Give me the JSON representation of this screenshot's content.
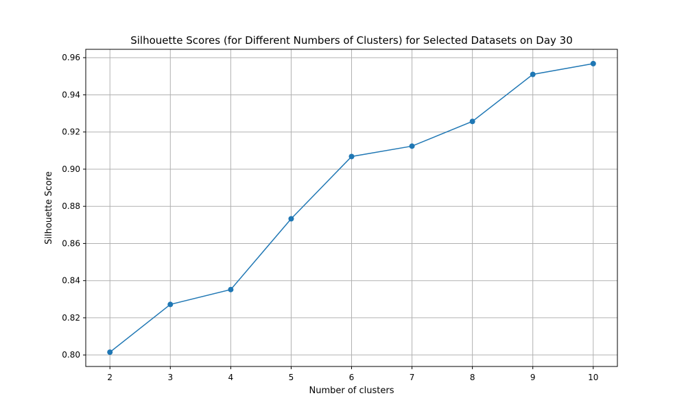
{
  "chart_data": {
    "type": "line",
    "title": "Silhouette Scores (for Different Numbers of Clusters) for Selected Datasets on Day 30",
    "xlabel": "Number of clusters",
    "ylabel": "Silhouette Score",
    "x": [
      2,
      3,
      4,
      5,
      6,
      7,
      8,
      9,
      10
    ],
    "series": [
      {
        "values": [
          0.8015,
          0.8272,
          0.8352,
          0.8733,
          0.9068,
          0.9124,
          0.9257,
          0.951,
          0.9568
        ],
        "color": "#1f77b4",
        "marker": "circle"
      }
    ],
    "xlim": [
      1.6,
      10.4
    ],
    "ylim": [
      0.7938,
      0.9645
    ],
    "xticks": [
      "2",
      "3",
      "4",
      "5",
      "6",
      "7",
      "8",
      "9",
      "10"
    ],
    "yticks": [
      "0.80",
      "0.82",
      "0.84",
      "0.86",
      "0.88",
      "0.90",
      "0.92",
      "0.94",
      "0.96"
    ],
    "grid": true
  }
}
